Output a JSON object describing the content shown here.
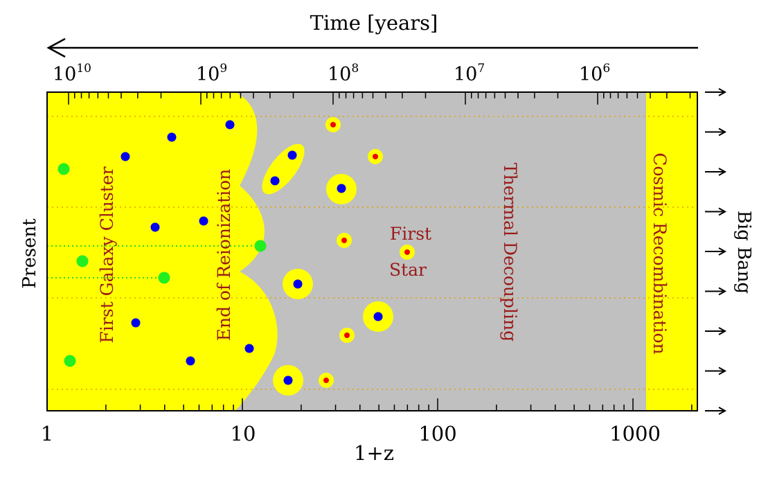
{
  "top_axis": {
    "title": "Time [years]",
    "ticks": [
      {
        "base": "10",
        "exp": "10"
      },
      {
        "base": "10",
        "exp": "9"
      },
      {
        "base": "10",
        "exp": "8"
      },
      {
        "base": "10",
        "exp": "7"
      },
      {
        "base": "10",
        "exp": "6"
      }
    ]
  },
  "bottom_axis": {
    "title": "1+z",
    "ticks": [
      "1",
      "10",
      "100",
      "1000"
    ]
  },
  "left_label": "Present",
  "right_label": "Big Bang",
  "regions": {
    "first_galaxy_cluster": "First Galaxy Cluster",
    "end_of_reionization": "End of Reionization",
    "first_star_line1": "First",
    "first_star_line2": "Star",
    "thermal_decoupling": "Thermal Decoupling",
    "cosmic_recombination": "Cosmic Recombination"
  },
  "colors": {
    "ionized": "#ffff00",
    "neutral": "#c0c0c0",
    "label_text": "#9a1b1b",
    "galaxy": "#0000ee",
    "star": "#ee0000",
    "cluster": "#22ee22",
    "guide": "#e0a000"
  }
}
